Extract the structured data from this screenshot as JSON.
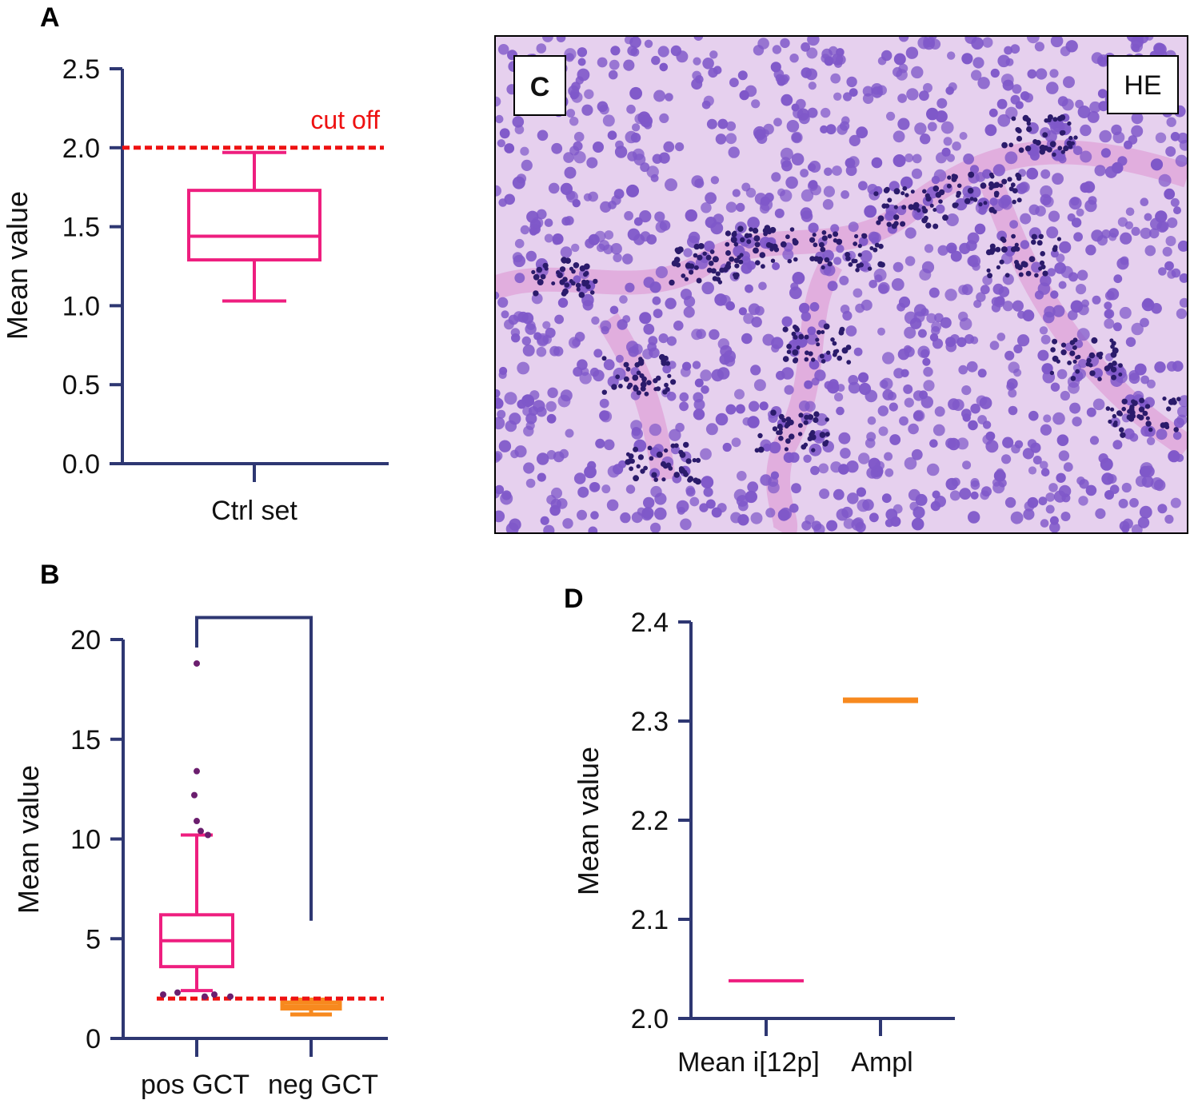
{
  "figure": {
    "panels": {
      "A": {
        "letter": "A"
      },
      "B": {
        "letter": "B"
      },
      "C": {
        "letter": "C",
        "badge": "HE"
      },
      "D": {
        "letter": "D"
      }
    },
    "cutoff_label": "cut off"
  },
  "colors": {
    "axis": "#2e3772",
    "pink": "#ee1e7f",
    "orange": "#f7891e",
    "cutoff": "#ee1111",
    "dots": "#6b1e6e",
    "tissue_bg": "#e6d0ee",
    "nucleus": "#7f58c9",
    "lymph": "#2b1b6b",
    "stroma": "#d86fc0"
  },
  "chart_data": [
    {
      "id": "A",
      "type": "box",
      "ylabel": "Mean value",
      "ylim": [
        0,
        2.5
      ],
      "yticks": [
        "0.0",
        "0.5",
        "1.0",
        "1.5",
        "2.0",
        "2.5"
      ],
      "categories": [
        "Ctrl set"
      ],
      "boxes": [
        {
          "category": "Ctrl set",
          "min": 1.03,
          "q1": 1.29,
          "median": 1.44,
          "q3": 1.73,
          "max": 1.97,
          "color": "pink"
        }
      ],
      "cutoff": {
        "value": 2.0,
        "label": "cut off"
      }
    },
    {
      "id": "B",
      "type": "box",
      "ylabel": "Mean value",
      "ylim": [
        0,
        20
      ],
      "yticks": [
        "0",
        "5",
        "10",
        "15",
        "20"
      ],
      "categories": [
        "pos GCT",
        "neg GCT"
      ],
      "boxes": [
        {
          "category": "pos GCT",
          "min": 2.4,
          "q1": 3.6,
          "median": 4.9,
          "q3": 6.2,
          "max": 10.2,
          "color": "pink",
          "outliers": [
            18.8,
            13.4,
            12.2,
            10.9,
            10.4,
            10.2,
            2.2,
            2.3,
            2.1,
            2.2,
            2.1
          ]
        },
        {
          "category": "neg GCT",
          "min": 1.2,
          "q1": 1.5,
          "median": 1.6,
          "q3": 1.8,
          "max": 1.95,
          "color": "orange"
        }
      ],
      "cutoff": {
        "value": 2.0
      },
      "significance_bracket": {
        "from": "pos GCT",
        "to": "neg GCT",
        "top": 21.1,
        "left_end": 19.6,
        "right_end": 5.9
      }
    },
    {
      "id": "D",
      "type": "line",
      "ylabel": "Mean value",
      "ylim": [
        2.0,
        2.4
      ],
      "yticks": [
        "2.0",
        "2.1",
        "2.2",
        "2.3",
        "2.4"
      ],
      "categories": [
        "Mean i[12p]",
        "Ampl"
      ],
      "values": [
        2.038,
        2.321
      ],
      "colors": [
        "pink",
        "orange"
      ]
    }
  ]
}
